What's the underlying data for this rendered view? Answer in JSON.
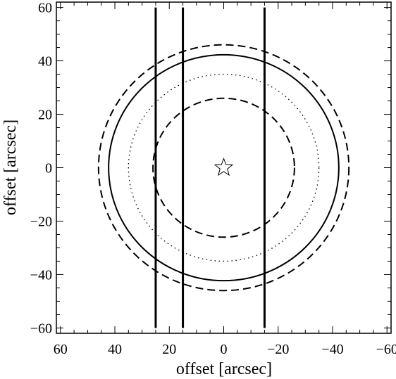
{
  "chart_data": {
    "type": "overlay",
    "x_label": "offset [arcsec]",
    "y_label": "offset [arcsec]",
    "xlim": [
      61.5,
      -61.5
    ],
    "ylim": [
      -62,
      62
    ],
    "xticks": [
      60,
      40,
      20,
      0,
      {
        "value": -20,
        "label": "−20"
      },
      {
        "value": -40,
        "label": "−40"
      },
      {
        "value": -60,
        "label": "−60"
      }
    ],
    "yticks": [
      {
        "value": -60,
        "label": "−60"
      },
      {
        "value": -40,
        "label": "−40"
      },
      {
        "value": -20,
        "label": "−20"
      },
      0,
      20,
      40,
      60
    ],
    "circles": [
      {
        "r": 46,
        "style": "dashed"
      },
      {
        "r": 42.3,
        "style": "solid"
      },
      {
        "r": 35,
        "style": "dotted"
      },
      {
        "r": 26,
        "style": "dashed"
      }
    ],
    "vlines": {
      "x": [
        25,
        15,
        -15
      ],
      "ymin": -60,
      "ymax": 60
    },
    "marker": {
      "x": 0,
      "y": 0,
      "symbol": "star"
    },
    "color": "#000000"
  }
}
